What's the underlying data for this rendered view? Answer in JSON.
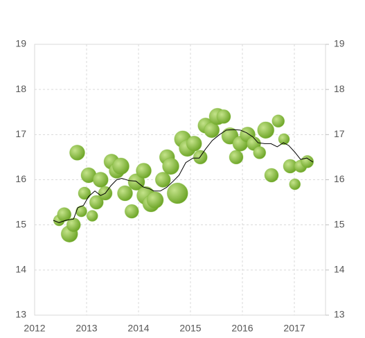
{
  "chart_data": {
    "type": "bubble",
    "xlim": [
      2012,
      2017.6
    ],
    "xticks": [
      2012,
      2013,
      2014,
      2015,
      2016,
      2017
    ],
    "ylim": [
      13,
      19
    ],
    "yticks": [
      13,
      14,
      15,
      16,
      17,
      18,
      19
    ],
    "y2lim": [
      13,
      19
    ],
    "y2ticks": [
      13,
      14,
      15,
      16,
      17,
      18,
      19
    ],
    "grid": true,
    "series": [
      {
        "type": "bubble",
        "color": "#7cb82f",
        "x": [
          2012.47,
          2012.57,
          2012.67,
          2012.75,
          2012.82,
          2012.9,
          2012.96,
          2013.04,
          2013.11,
          2013.19,
          2013.27,
          2013.36,
          2013.48,
          2013.58,
          2013.66,
          2013.74,
          2013.87,
          2013.96,
          2014.1,
          2014.14,
          2014.24,
          2014.32,
          2014.47,
          2014.55,
          2014.62,
          2014.75,
          2014.85,
          2014.94,
          2015.07,
          2015.19,
          2015.29,
          2015.41,
          2015.52,
          2015.64,
          2015.76,
          2015.88,
          2015.96,
          2016.1,
          2016.22,
          2016.33,
          2016.45,
          2016.56,
          2016.69,
          2016.8,
          2016.92,
          2017.01,
          2017.12,
          2017.25
        ],
        "values": [
          15.1,
          15.23,
          14.8,
          15.0,
          16.6,
          15.3,
          15.7,
          16.1,
          15.2,
          15.5,
          16.0,
          15.7,
          16.4,
          16.2,
          16.3,
          15.7,
          15.3,
          15.95,
          16.2,
          15.65,
          15.47,
          15.55,
          16.0,
          16.5,
          16.3,
          15.7,
          16.9,
          16.7,
          16.8,
          16.5,
          17.2,
          17.1,
          17.4,
          17.4,
          16.97,
          16.5,
          16.8,
          17.0,
          16.8,
          16.6,
          17.1,
          16.1,
          17.3,
          16.9,
          16.3,
          15.9,
          16.3,
          16.4
        ],
        "sizes": [
          8,
          10,
          12,
          10,
          11,
          8,
          9,
          11,
          8,
          10,
          11,
          10,
          11,
          11,
          12,
          11,
          10,
          12,
          11,
          13,
          12,
          12,
          11,
          11,
          12,
          15,
          12,
          12,
          11,
          10,
          11,
          11,
          12,
          10,
          12,
          10,
          11,
          11,
          10,
          9,
          12,
          10,
          9,
          8,
          10,
          8,
          9,
          9
        ]
      },
      {
        "type": "line",
        "color": "#000000",
        "x": [
          2012.36,
          2012.47,
          2012.6,
          2012.75,
          2012.83,
          2012.94,
          2013.04,
          2013.16,
          2013.27,
          2013.36,
          2013.47,
          2013.58,
          2013.68,
          2013.82,
          2013.95,
          2014.09,
          2014.21,
          2014.3,
          2014.42,
          2014.54,
          2014.67,
          2014.78,
          2014.91,
          2015.05,
          2015.17,
          2015.29,
          2015.42,
          2015.56,
          2015.69,
          2015.84,
          2015.96,
          2016.08,
          2016.2,
          2016.3,
          2016.43,
          2016.55,
          2016.67,
          2016.79,
          2016.89,
          2017.01,
          2017.12,
          2017.24,
          2017.36
        ],
        "values": [
          15.1,
          15.05,
          15.1,
          15.13,
          15.38,
          15.43,
          15.63,
          15.75,
          15.65,
          15.7,
          15.87,
          16.0,
          16.03,
          15.98,
          15.97,
          15.84,
          15.8,
          15.75,
          15.75,
          15.83,
          15.97,
          16.1,
          16.38,
          16.48,
          16.48,
          16.68,
          16.87,
          17.0,
          17.1,
          17.11,
          17.1,
          17.04,
          16.95,
          16.82,
          16.8,
          16.8,
          16.73,
          16.82,
          16.76,
          16.61,
          16.45,
          16.48,
          16.39
        ]
      }
    ]
  }
}
